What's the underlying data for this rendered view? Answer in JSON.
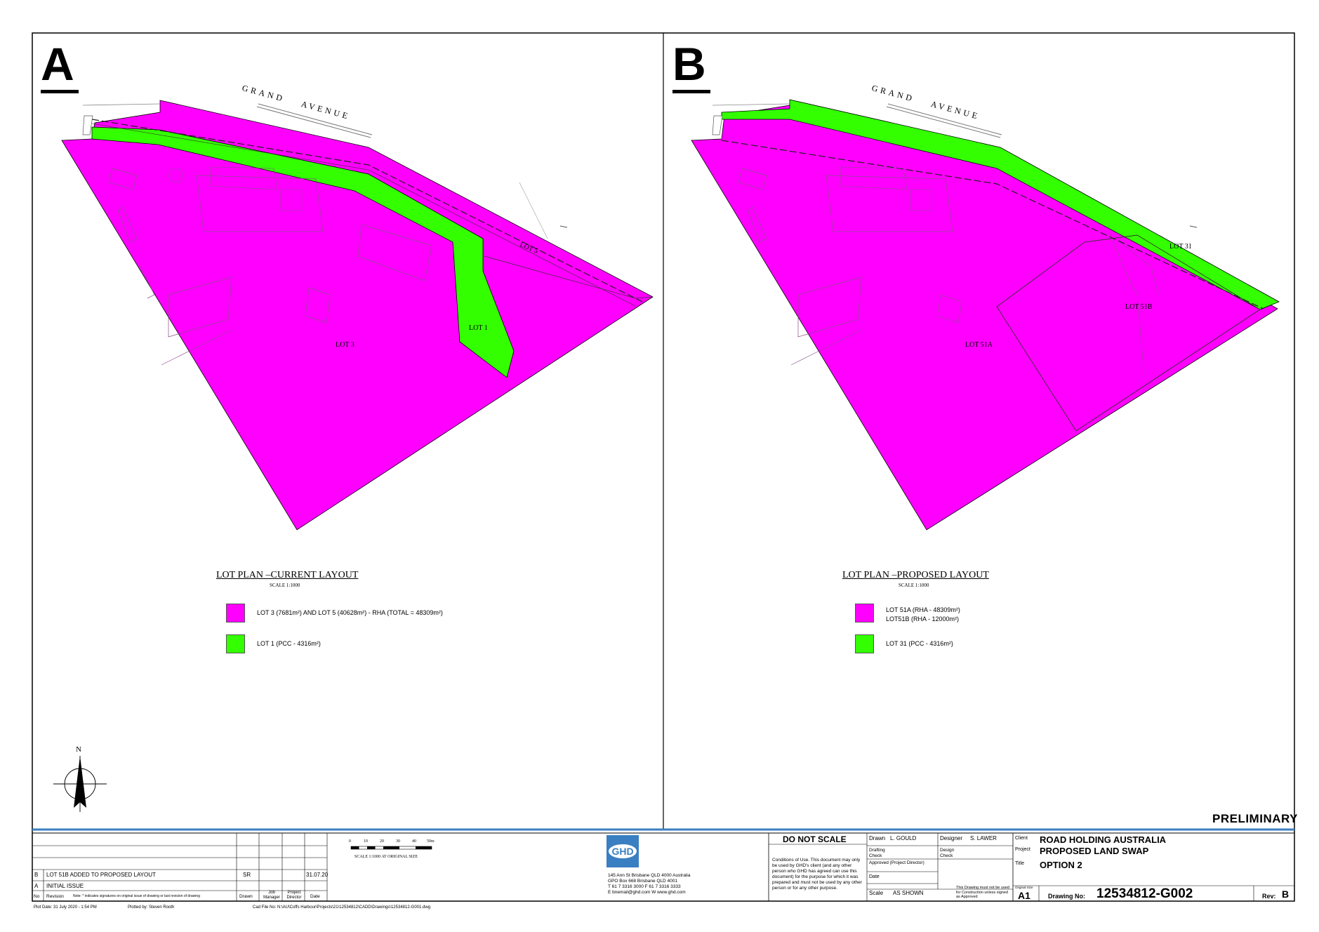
{
  "colors": {
    "rha": "#ff00ff",
    "pcc": "#33ff00",
    "ghd_blue": "#3a7fc1"
  },
  "panel_a": {
    "letter": "A",
    "road": {
      "grand": "GRAND",
      "avenue": "AVENUE"
    },
    "lot_labels": {
      "lot3": "LOT 3",
      "lot1": "LOT 1",
      "lot5": "LOT 5"
    },
    "legend": {
      "title": "LOT PLAN –CURRENT LAYOUT",
      "scale": "SCALE 1:1000",
      "items": [
        {
          "text": "LOT 3 (7681m²) AND LOT 5 (40628m²) - RHA (TOTAL = 48309m²)"
        },
        {
          "text": "LOT 1 (PCC - 4316m²)"
        }
      ]
    }
  },
  "panel_b": {
    "letter": "B",
    "road": {
      "grand": "GRAND",
      "avenue": "AVENUE"
    },
    "lot_labels": {
      "lot51a": "LOT 51A",
      "lot51b": "LOT 51B",
      "lot31": "LOT 31"
    },
    "legend": {
      "title": "LOT PLAN –PROPOSED LAYOUT",
      "scale": "SCALE 1:1000",
      "items": [
        {
          "line1": "LOT 51A (RHA - 48309m²)",
          "line2": "LOT51B (RHA - 12000m²)"
        },
        {
          "text": "LOT 31 (PCC - 4316m²)"
        }
      ]
    }
  },
  "north": "N",
  "preliminary": "PRELIMINARY",
  "title_block": {
    "revisions": [
      {
        "rev": "B",
        "desc": "LOT 51B ADDED TO PROPOSED LAYOUT",
        "drawn": "SR",
        "date": "31.07.20"
      },
      {
        "rev": "A",
        "desc": "INITIAL ISSUE",
        "drawn": "",
        "date": ""
      }
    ],
    "headers": {
      "no": "No",
      "revision": "Revision",
      "note": "Note: * indicates signatures on original issue of drawing or last revision of drawing",
      "drawn": "Drawn",
      "job_manager": "Job Manager",
      "project_director": "Project Director",
      "date": "Date"
    },
    "scale_bar": {
      "ticks": [
        "0",
        "10",
        "20",
        "30",
        "40",
        "50m"
      ],
      "caption": "SCALE 1:1000  AT ORIGINAL SIZE"
    },
    "ghd": {
      "logo": "GHD",
      "address": "145 Ann St Brisbane QLD 4000 Australia",
      "po_box": "GPO Box 668 Brisbane QLD 4001",
      "phone": "T 61 7 3316 3000  F 61 7 3316 3333",
      "email": "E bnemail@ghd.com  W www.ghd.com"
    },
    "do_not_scale": "DO NOT SCALE",
    "conditions": "Conditions of Use. This document may only be used by GHD's client (and any other person who GHD has agreed can use this document) for the purpose for which it was prepared and must not be used by any other person or for any other purpose.",
    "drawn": {
      "label": "Drawn",
      "value": "L. GOULD"
    },
    "designer": {
      "label": "Designer",
      "value": "S. LAWER"
    },
    "drafting_check": "Drafting Check",
    "design_check": "Design Check",
    "approved": "Approved (Project Director)",
    "date_label": "Date",
    "scale": {
      "label": "Scale",
      "value": "AS SHOWN"
    },
    "construction_note": "This Drawing must not be used for Construction unless signed as Approved",
    "client": {
      "label": "Client",
      "value": "ROAD HOLDING AUSTRALIA"
    },
    "project": {
      "label": "Project",
      "value": "PROPOSED LAND SWAP"
    },
    "title": {
      "label": "Title",
      "value": "OPTION 2"
    },
    "original_size": {
      "label": "Original Size",
      "value": "A1"
    },
    "drawing_no": {
      "label": "Drawing No:",
      "value": "12534812-G002"
    },
    "rev": {
      "label": "Rev:",
      "value": "B"
    }
  },
  "footer": {
    "plot_date": "Plot Date:   31 July 2020 - 1:54 PM",
    "plotted_by": "Plotted by:   Steven Rooth",
    "cad_file": "Cad File No:   N:\\AU\\Coffs Harbour\\Projects\\21\\12534812\\CADD\\Drawings\\12534812-G001.dwg"
  }
}
